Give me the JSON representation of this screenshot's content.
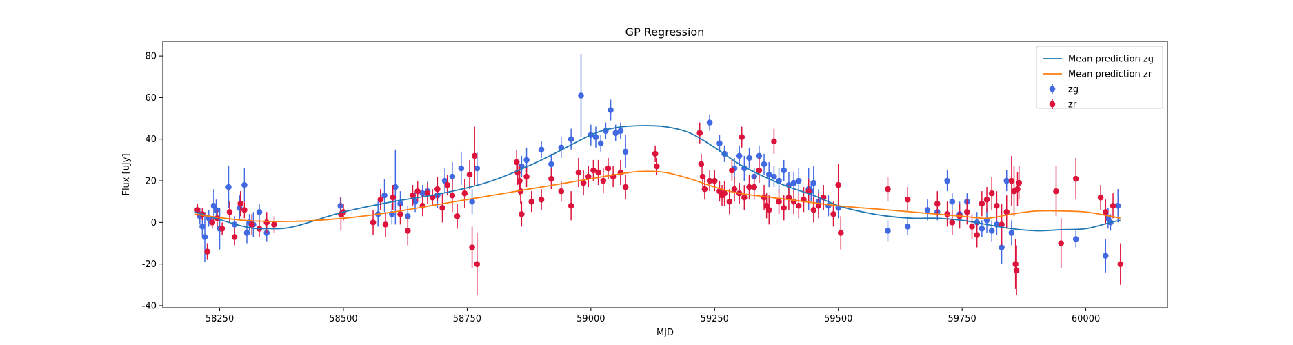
{
  "chart_data": {
    "type": "scatter",
    "title": "GP Regression",
    "xlabel": "MJD",
    "ylabel": "Flux [uJy]",
    "xlim": [
      58135,
      60165
    ],
    "ylim": [
      -41,
      87
    ],
    "xticks": [
      58250,
      58500,
      58750,
      59000,
      59250,
      59500,
      59750,
      60000
    ],
    "yticks": [
      -40,
      -20,
      0,
      20,
      40,
      60,
      80
    ],
    "legend_position": "top-right",
    "series": [
      {
        "name": "Mean prediction zg",
        "kind": "line",
        "color": "#1f77b4",
        "x": [
          58200,
          58300,
          58350,
          58400,
          58500,
          58600,
          58700,
          58800,
          58900,
          59000,
          59050,
          59100,
          59150,
          59200,
          59250,
          59300,
          59350,
          59400,
          59450,
          59500,
          59550,
          59600,
          59650,
          59700,
          59750,
          59800,
          59850,
          59900,
          59950,
          60000,
          60050,
          60070
        ],
        "y": [
          5,
          -2,
          -3,
          -2,
          5,
          10,
          14,
          20,
          30,
          42,
          45.5,
          46.5,
          46,
          43,
          36,
          28,
          22,
          17,
          13,
          8,
          5,
          3,
          2,
          2,
          1,
          -1,
          -3,
          -4,
          -3.5,
          -3,
          0,
          1
        ]
      },
      {
        "name": "Mean prediction zr",
        "kind": "line",
        "color": "#ff7f0e",
        "x": [
          58200,
          58300,
          58400,
          58500,
          58600,
          58700,
          58800,
          58900,
          59000,
          59050,
          59100,
          59150,
          59200,
          59250,
          59300,
          59400,
          59500,
          59600,
          59700,
          59750,
          59800,
          59850,
          59900,
          59950,
          60000,
          60050,
          60070
        ],
        "y": [
          4,
          1,
          0.5,
          2,
          5,
          9,
          13,
          17,
          21,
          23,
          24.5,
          24,
          21,
          17,
          14,
          11,
          8,
          6,
          4,
          3,
          2,
          4,
          5.5,
          5.5,
          5,
          3,
          2
        ]
      },
      {
        "name": "zg",
        "kind": "errorbar",
        "color": "#4169e1",
        "x": [
          58210,
          58215,
          58220,
          58228,
          58238,
          58243,
          58250,
          58268,
          58280,
          58290,
          58300,
          58305,
          58310,
          58318,
          58330,
          58345,
          58494,
          58570,
          58583,
          58598,
          58605,
          58615,
          58630,
          58645,
          58660,
          58670,
          58690,
          58705,
          58720,
          58738,
          58760,
          58770,
          58860,
          58870,
          58900,
          58920,
          58940,
          58960,
          58980,
          59000,
          59010,
          59020,
          59030,
          59040,
          59050,
          59060,
          59070,
          59240,
          59260,
          59270,
          59290,
          59300,
          59310,
          59320,
          59330,
          59340,
          59350,
          59360,
          59370,
          59380,
          59390,
          59400,
          59410,
          59420,
          59440,
          59445,
          59450,
          59460,
          59480,
          59500,
          59600,
          59640,
          59680,
          59700,
          59720,
          59730,
          59745,
          59760,
          59780,
          59790,
          59800,
          59810,
          59820,
          59830,
          59840,
          59850,
          59980,
          60040,
          60045,
          60050,
          60065
        ],
        "y": [
          3,
          -2,
          -7,
          2,
          8,
          6,
          -3,
          17,
          -1,
          7,
          18,
          -5,
          0,
          -1,
          5,
          -5,
          8,
          4,
          13,
          4,
          17,
          9,
          3,
          10,
          14,
          15,
          13,
          20,
          22,
          26,
          10,
          26,
          27,
          30,
          35,
          28,
          36,
          40,
          61,
          42,
          41,
          38,
          44,
          54,
          43,
          44,
          34,
          48,
          38,
          33,
          26,
          32,
          26,
          31,
          22,
          32,
          28,
          23,
          22,
          20,
          25,
          18,
          19,
          20,
          16,
          15,
          19,
          10,
          8,
          7,
          -4,
          -2,
          6,
          5,
          20,
          10,
          4,
          10,
          0,
          -3,
          1,
          -4,
          -1,
          -12,
          20,
          -5,
          -8,
          -16,
          2,
          0,
          8
        ],
        "err": [
          4,
          5,
          12,
          4,
          8,
          5,
          10,
          10,
          4,
          6,
          8,
          5,
          4,
          6,
          4,
          4,
          4,
          6,
          8,
          5,
          18,
          6,
          5,
          5,
          4,
          5,
          6,
          6,
          7,
          8,
          6,
          8,
          5,
          6,
          4,
          5,
          5,
          5,
          20,
          5,
          5,
          4,
          4,
          5,
          4,
          4,
          8,
          4,
          4,
          4,
          5,
          5,
          6,
          5,
          4,
          5,
          5,
          6,
          5,
          6,
          5,
          6,
          5,
          6,
          10,
          5,
          8,
          6,
          5,
          5,
          5,
          4,
          5,
          4,
          5,
          4,
          6,
          4,
          5,
          4,
          6,
          5,
          5,
          8,
          5,
          6,
          4,
          8,
          5,
          4,
          8
        ]
      },
      {
        "name": "zr",
        "kind": "errorbar",
        "color": "#dc143c",
        "x": [
          58205,
          58215,
          58225,
          58235,
          58245,
          58255,
          58270,
          58280,
          58292,
          58300,
          58315,
          58330,
          58345,
          58360,
          58495,
          58500,
          58560,
          58575,
          58585,
          58600,
          58615,
          58630,
          58640,
          58650,
          58660,
          58670,
          58680,
          58690,
          58700,
          58710,
          58720,
          58730,
          58745,
          58755,
          58760,
          58765,
          58770,
          58850,
          58852,
          58856,
          58858,
          58860,
          58870,
          58880,
          58900,
          58920,
          58940,
          58960,
          58975,
          58985,
          58995,
          59005,
          59015,
          59025,
          59035,
          59045,
          59060,
          59070,
          59130,
          59133,
          59220,
          59223,
          59226,
          59230,
          59240,
          59250,
          59260,
          59265,
          59270,
          59280,
          59285,
          59290,
          59300,
          59305,
          59310,
          59320,
          59330,
          59340,
          59350,
          59355,
          59360,
          59370,
          59380,
          59390,
          59400,
          59410,
          59420,
          59430,
          59440,
          59450,
          59460,
          59470,
          59490,
          59500,
          59505,
          59600,
          59640,
          59700,
          59720,
          59730,
          59745,
          59760,
          59770,
          59780,
          59790,
          59800,
          59810,
          59820,
          59830,
          59840,
          59850,
          59855,
          59858,
          59860,
          59862,
          59865,
          59940,
          59950,
          59980,
          60030,
          60040,
          60055,
          60070
        ],
        "y": [
          6,
          4,
          -14,
          0,
          2,
          -3,
          5,
          -7,
          9,
          6,
          -1,
          -3,
          0,
          -1,
          4,
          5,
          0,
          11,
          -1,
          12,
          4,
          -4,
          13,
          15,
          8,
          14,
          12,
          16,
          7,
          18,
          13,
          3,
          14,
          23,
          -12,
          32,
          -20,
          29,
          24,
          20,
          15,
          4,
          22,
          10,
          11,
          21,
          15,
          8,
          24,
          19,
          22,
          25,
          24,
          20,
          26,
          22,
          24,
          17,
          33,
          27,
          43,
          28,
          22,
          16,
          20,
          20,
          15,
          13,
          14,
          10,
          25,
          16,
          14,
          41,
          12,
          17,
          17,
          25,
          12,
          8,
          6,
          39,
          10,
          7,
          12,
          10,
          8,
          11,
          15,
          6,
          8,
          12,
          4,
          18,
          -5,
          16,
          11,
          9,
          4,
          0,
          3,
          5,
          -2,
          -6,
          9,
          11,
          14,
          8,
          -1,
          5,
          20,
          15,
          -20,
          -23,
          16,
          19,
          15,
          -10,
          21,
          12,
          5,
          8,
          -20
        ],
        "err": [
          3,
          3,
          4,
          3,
          4,
          3,
          5,
          4,
          6,
          4,
          5,
          4,
          5,
          4,
          8,
          4,
          6,
          5,
          6,
          6,
          5,
          7,
          5,
          5,
          5,
          5,
          4,
          6,
          7,
          5,
          8,
          6,
          7,
          7,
          10,
          14,
          15,
          6,
          6,
          7,
          6,
          6,
          5,
          5,
          5,
          5,
          5,
          7,
          7,
          6,
          5,
          5,
          6,
          6,
          5,
          5,
          6,
          6,
          4,
          4,
          5,
          5,
          6,
          5,
          5,
          5,
          5,
          5,
          6,
          6,
          5,
          6,
          5,
          5,
          6,
          6,
          6,
          6,
          6,
          6,
          7,
          6,
          6,
          6,
          6,
          6,
          6,
          6,
          6,
          6,
          6,
          6,
          6,
          10,
          8,
          6,
          6,
          6,
          6,
          6,
          6,
          6,
          6,
          6,
          6,
          6,
          8,
          7,
          10,
          8,
          12,
          12,
          12,
          12,
          8,
          8,
          12,
          12,
          10,
          6,
          6,
          6,
          10
        ]
      }
    ]
  }
}
